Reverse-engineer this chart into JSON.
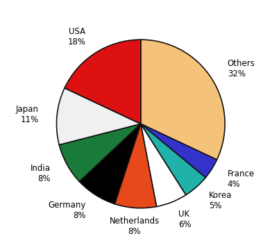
{
  "labels": [
    "Others",
    "France",
    "Korea",
    "UK",
    "Netherlands",
    "Germany",
    "India",
    "Japan",
    "USA"
  ],
  "values": [
    32,
    4,
    5,
    6,
    8,
    8,
    8,
    11,
    18
  ],
  "colors": [
    "#F5C27A",
    "#3333CC",
    "#20B2AA",
    "#FFFFFF",
    "#E8491A",
    "#000000",
    "#1A7A3A",
    "#F0F0F0",
    "#DD1111"
  ],
  "startangle": 90,
  "figsize": [
    3.79,
    3.63
  ],
  "dpi": 100,
  "edge_color": "#111111",
  "edge_width": 1.2,
  "label_distance": 1.22,
  "font_size": 8.5
}
